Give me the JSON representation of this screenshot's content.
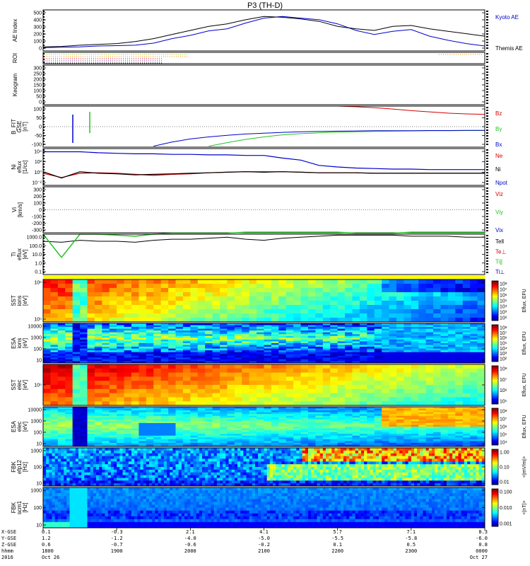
{
  "title": "P3 (TH-D)",
  "colors": {
    "red": "#d40000",
    "green": "#22c422",
    "blue": "#0000cc",
    "black": "#000000"
  },
  "panels": [
    {
      "id": "ae",
      "ylabel": [
        "AE Index"
      ],
      "yticks": [
        "500",
        "400",
        "300",
        "200",
        "100",
        "0"
      ],
      "legend": [
        {
          "text": "Kyoto AE",
          "color": "#0000cc"
        },
        {
          "text": "Themis AE",
          "color": "#000000"
        }
      ]
    },
    {
      "id": "roi",
      "ylabel": [
        "ROI"
      ],
      "yticks": [],
      "legend": []
    },
    {
      "id": "keogram",
      "ylabel": [
        "Keogram"
      ],
      "yticks": [
        "300",
        "250",
        "200",
        "150",
        "100",
        "50",
        "0"
      ],
      "legend": []
    },
    {
      "id": "bfit",
      "ylabel": [
        "B_FIT",
        "GSE",
        "[nT]"
      ],
      "yticks": [
        "100",
        "50",
        "0",
        "-50",
        "-100"
      ],
      "legend": [
        {
          "text": "Bz",
          "color": "#d40000"
        },
        {
          "text": "By",
          "color": "#22c422"
        },
        {
          "text": "Bx",
          "color": "#0000cc"
        }
      ]
    },
    {
      "id": "ni",
      "ylabel": [
        "Ni",
        "eflux",
        "[1/cc]"
      ],
      "yticks": [
        "10⁴",
        "10²",
        "10⁰",
        "10⁻²"
      ],
      "legend": [
        {
          "text": "Ne",
          "color": "#d40000"
        },
        {
          "text": "Ni",
          "color": "#000000"
        },
        {
          "text": "Npot",
          "color": "#0000cc"
        }
      ]
    },
    {
      "id": "vi",
      "ylabel": [
        "Vi",
        "[km/s]"
      ],
      "yticks": [
        "300",
        "200",
        "100",
        "0",
        "-100",
        "-200",
        "-300"
      ],
      "legend": [
        {
          "text": "Viz",
          "color": "#d40000"
        },
        {
          "text": "Viy",
          "color": "#22c422"
        },
        {
          "text": "Vix",
          "color": "#0000cc"
        }
      ]
    },
    {
      "id": "ti",
      "ylabel": [
        "Ti",
        "eflux",
        "[eV]"
      ],
      "yticks": [
        "1000.0",
        "100.0",
        "10.0",
        "1.0",
        "0.1"
      ],
      "legend": [
        {
          "text": "Tell",
          "color": "#000000"
        },
        {
          "text": "Te⊥",
          "color": "#d40000"
        },
        {
          "text": "Ti∥",
          "color": "#22c422"
        },
        {
          "text": "Ti⊥",
          "color": "#0000cc"
        }
      ]
    },
    {
      "id": "sst_i",
      "ylabel": [
        "SST",
        "ions",
        "[eV]"
      ],
      "yticks": [
        "10⁶",
        "10⁵"
      ],
      "cbar": {
        "ticks": [
          "10⁸",
          "10⁷",
          "10⁶",
          "10⁵",
          "10⁴",
          "10³",
          "10²"
        ],
        "label": "Eflux, EFU"
      }
    },
    {
      "id": "esa_i",
      "ylabel": [
        "ESA",
        "ions",
        "[eV]"
      ],
      "yticks": [
        "10000",
        "1000",
        "100",
        "10"
      ],
      "cbar": {
        "ticks": [
          "10⁸",
          "10⁷",
          "10⁶",
          "10⁵",
          "10⁴",
          "10³",
          "10²"
        ],
        "label": "Eflux, EFU"
      }
    },
    {
      "id": "sst_e",
      "ylabel": [
        "SST",
        "elec",
        "[eV]"
      ],
      "yticks": [
        "10⁵"
      ],
      "cbar": {
        "ticks": [
          "10⁸",
          "10⁷",
          "10⁶",
          "10⁵"
        ],
        "label": "Eflux, EFU"
      }
    },
    {
      "id": "esa_e",
      "ylabel": [
        "ESA",
        "elec",
        "[eV]"
      ],
      "yticks": [
        "10000",
        "1000",
        "100",
        "10"
      ],
      "cbar": {
        "ticks": [
          "10⁸",
          "10⁷",
          "10⁶",
          "10⁵",
          "10⁴"
        ],
        "label": "Eflux, EFU"
      }
    },
    {
      "id": "fbk_e",
      "ylabel": [
        "FBK",
        "efp12",
        "[Hz]"
      ],
      "yticks": [
        "1000",
        "100",
        "10"
      ],
      "cbar": {
        "ticks": [
          "1.00",
          "0.10",
          "0.01"
        ],
        "label": "<|mV/m|>"
      }
    },
    {
      "id": "fbk_b",
      "ylabel": [
        "FBK",
        "scm1",
        "[Hz]"
      ],
      "yticks": [
        "1000",
        "100",
        "10"
      ],
      "cbar": {
        "ticks": [
          "0.100",
          "0.010",
          "0.001"
        ],
        "label": "<|nT|>"
      }
    }
  ],
  "footer": {
    "row_labels": [
      "X-GSE",
      "Y-GSE",
      "Z-GSE",
      "hhmm",
      "2016"
    ],
    "columns": [
      {
        "vals": [
          "0.1",
          "1.2",
          "0.6",
          "1800",
          "Oct 26"
        ]
      },
      {
        "vals": [
          "-0.3",
          "-1.2",
          "-0.7",
          "1900",
          ""
        ]
      },
      {
        "vals": [
          "2.1",
          "-4.0",
          "-0.6",
          "2000",
          ""
        ]
      },
      {
        "vals": [
          "4.1",
          "-5.0",
          "-0.2",
          "2100",
          ""
        ]
      },
      {
        "vals": [
          "5.7",
          "-5.5",
          "0.1",
          "2200",
          ""
        ]
      },
      {
        "vals": [
          "7.1",
          "-5.8",
          "0.5",
          "2300",
          ""
        ]
      },
      {
        "vals": [
          "8.3",
          "-6.0",
          "0.8",
          "0000",
          "Oct 27"
        ]
      }
    ]
  },
  "chart_data": {
    "type": "line",
    "title": "P3 (TH-D)",
    "x_ticks": [
      "1800",
      "1900",
      "2000",
      "2100",
      "2200",
      "2300",
      "0000"
    ],
    "x": [
      0,
      0.25,
      0.5,
      0.75,
      1,
      1.25,
      1.5,
      1.75,
      2,
      2.25,
      2.5,
      2.75,
      3,
      3.25,
      3.5,
      3.75,
      4,
      4.25,
      4.5,
      4.75,
      5,
      5.25,
      5.5,
      5.75,
      6
    ],
    "ae_index": {
      "ylim": [
        0,
        500
      ],
      "series": [
        {
          "name": "Kyoto AE",
          "color": "#0000cc",
          "values": [
            40,
            45,
            50,
            60,
            65,
            70,
            95,
            150,
            190,
            245,
            270,
            340,
            400,
            420,
            400,
            380,
            330,
            250,
            200,
            240,
            260,
            180,
            130,
            90,
            60
          ]
        },
        {
          "name": "Themis AE",
          "color": "#000000",
          "values": [
            50,
            55,
            70,
            80,
            90,
            115,
            150,
            200,
            250,
            300,
            330,
            380,
            420,
            410,
            390,
            360,
            300,
            270,
            250,
            300,
            310,
            270,
            240,
            210,
            180
          ]
        }
      ]
    },
    "b_fit": {
      "ylim": [
        -100,
        100
      ],
      "series": [
        {
          "name": "Bz",
          "color": "#d40000",
          "values": [
            null,
            null,
            null,
            null,
            null,
            null,
            null,
            null,
            null,
            null,
            null,
            null,
            null,
            null,
            null,
            null,
            100,
            97,
            92,
            86,
            78,
            72,
            66,
            62,
            60
          ]
        },
        {
          "name": "By",
          "color": "#22c422",
          "values": [
            null,
            null,
            null,
            null,
            null,
            null,
            null,
            null,
            null,
            -95,
            -78,
            -62,
            -50,
            -40,
            -34,
            -30,
            -27,
            -25,
            -23,
            -22,
            -21,
            -20,
            -20,
            -19,
            -19
          ]
        },
        {
          "name": "Bx",
          "color": "#0000cc",
          "values": [
            null,
            null,
            null,
            null,
            null,
            null,
            -95,
            -75,
            -60,
            -50,
            -42,
            -36,
            -32,
            -28,
            -25,
            -23,
            -22,
            -21,
            -20,
            -20,
            -20,
            -19,
            -19,
            -18,
            -18
          ]
        }
      ]
    },
    "ni": {
      "ylim_log10": [
        -2,
        5
      ],
      "series": [
        {
          "name": "Npot",
          "color": "#0000cc",
          "values": [
            4.4,
            4.4,
            4.4,
            4.2,
            4.1,
            4.0,
            4.0,
            3.9,
            3.9,
            3.8,
            3.8,
            3.7,
            3.7,
            3.2,
            2.8,
            1.8,
            1.5,
            1.3,
            1.2,
            1.1,
            1.1,
            1.0,
            1.0,
            1.0,
            1.0
          ]
        },
        {
          "name": "Ne",
          "color": "#d40000",
          "values": [
            0.3,
            -0.5,
            0.3,
            0.4,
            0.3,
            0.1,
            -0.1,
            0.1,
            0.2,
            0.4,
            0.5,
            0.6,
            0.6,
            0.6,
            0.5,
            0.4,
            0.4,
            0.4,
            0.3,
            0.3,
            0.3,
            0.3,
            0.3,
            0.3,
            0.3
          ]
        },
        {
          "name": "Ni",
          "color": "#000000",
          "values": [
            0.6,
            -0.6,
            0.6,
            0.3,
            0.2,
            0.0,
            0.1,
            0.2,
            0.3,
            0.4,
            0.5,
            0.6,
            0.5,
            0.6,
            0.5,
            0.4,
            0.4,
            0.4,
            0.3,
            0.3,
            0.3,
            0.3,
            0.3,
            0.3,
            0.3
          ]
        }
      ]
    },
    "temperature": {
      "ylim_log10": [
        -1,
        3
      ],
      "series": [
        {
          "name": "Tell",
          "color": "#000000",
          "values": [
            2.3,
            2.2,
            2.4,
            2.3,
            2.3,
            2.2,
            2.4,
            2.5,
            2.5,
            2.6,
            2.7,
            2.5,
            2.4,
            2.6,
            2.7,
            2.8,
            2.9,
            2.9,
            2.9,
            2.9,
            2.8,
            2.8,
            2.8,
            2.7,
            2.7
          ]
        },
        {
          "name": "Ti∥",
          "color": "#22c422",
          "values": [
            3.0,
            0.7,
            3.0,
            3.0,
            2.9,
            2.8,
            3.0,
            3.1,
            3.1,
            3.1,
            3.1,
            3.2,
            3.2,
            3.2,
            3.2,
            3.2,
            3.2,
            3.1,
            3.1,
            3.1,
            3.2,
            3.2,
            3.2,
            3.2,
            3.2
          ]
        }
      ]
    }
  }
}
